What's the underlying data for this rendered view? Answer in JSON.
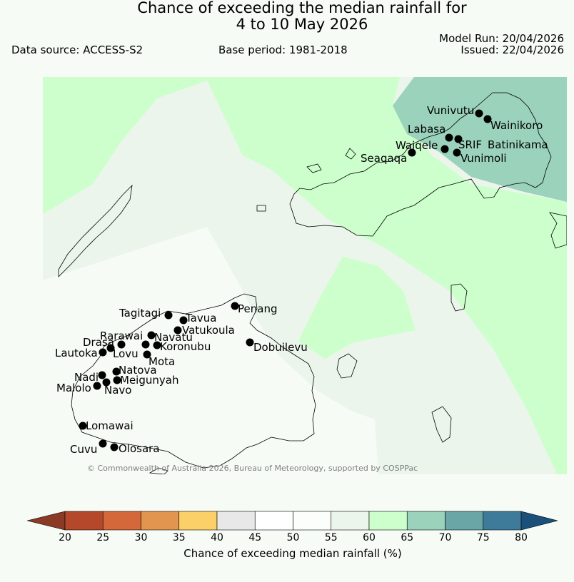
{
  "title": {
    "line1": "Chance of exceeding the median rainfall for",
    "line2": "4 to 10 May 2026"
  },
  "meta": {
    "data_source": "Data source: ACCESS-S2",
    "base_period": "Base period: 1981-2018",
    "model_run": "Model Run: 20/04/2026",
    "issued": "Issued: 22/04/2026"
  },
  "copyright": "© Commonwealth of Australia 2026, Bureau of Meteorology, supported by COSPPac",
  "colorbar": {
    "label": "Chance of exceeding median rainfall (%)",
    "ticks": [
      "20",
      "25",
      "30",
      "35",
      "40",
      "45",
      "50",
      "55",
      "60",
      "65",
      "70",
      "75",
      "80"
    ],
    "colors": [
      "#b5482a",
      "#d5683a",
      "#e2954e",
      "#fcd068",
      "#e8e8e8",
      "#ffffff",
      "#fbfefb",
      "#ebf5eb",
      "#ccffcc",
      "#9ad2bb",
      "#6aa6a6",
      "#3e7b9b"
    ],
    "low_color": "#8b3a25",
    "high_color": "#1a507a"
  },
  "map_colors": {
    "band_40_45": "#ebf5eb",
    "band_45_55": "#f6fbf6",
    "band_55_60": "#ccffcc",
    "band_60_65": "#ccffcc",
    "band_65_70": "#9ad2bb"
  },
  "places": [
    {
      "name": "Vunivutu"
    },
    {
      "name": "Wainikoro"
    },
    {
      "name": "Labasa"
    },
    {
      "name": "Waiqele"
    },
    {
      "name": "SRIF"
    },
    {
      "name": "Batinikama"
    },
    {
      "name": "Seaqaqa"
    },
    {
      "name": "Vunimoli"
    },
    {
      "name": "Penang"
    },
    {
      "name": "Tagitagi"
    },
    {
      "name": "Tavua"
    },
    {
      "name": "Vatukoula"
    },
    {
      "name": "Rarawai"
    },
    {
      "name": "Navatu"
    },
    {
      "name": "Drasa"
    },
    {
      "name": "Koronubu"
    },
    {
      "name": "Lautoka"
    },
    {
      "name": "Lovu"
    },
    {
      "name": "Mota"
    },
    {
      "name": "Dobuilevu"
    },
    {
      "name": "Natova"
    },
    {
      "name": "Nadi"
    },
    {
      "name": "Meigunyah"
    },
    {
      "name": "Malolo"
    },
    {
      "name": "Navo"
    },
    {
      "name": "Lomawai"
    },
    {
      "name": "Cuvu"
    },
    {
      "name": "Olosara"
    }
  ]
}
